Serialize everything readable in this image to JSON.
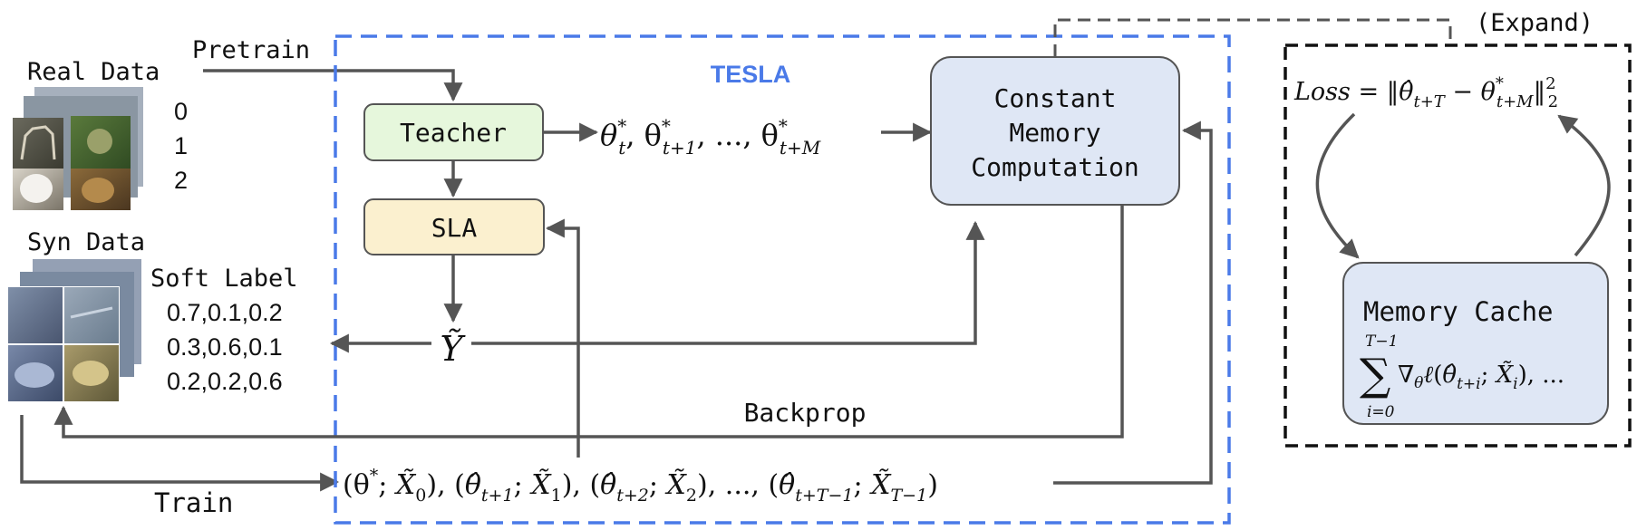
{
  "left": {
    "real_data_label": "Real Data",
    "pretrain_label": "Pretrain",
    "real_classes": [
      "0",
      "1",
      "2"
    ],
    "syn_data_label": "Syn Data",
    "soft_label_title": "Soft Label",
    "soft_labels": [
      "0.7,0.1,0.2",
      "0.3,0.6,0.1",
      "0.2,0.2,0.6"
    ],
    "train_label": "Train"
  },
  "tesla": {
    "title": "TESLA",
    "teacher_label": "Teacher",
    "sla_label": "SLA",
    "teacher_outputs": "θ*_t, θ*_{t+1}, ..., θ*_{t+M}",
    "y_tilde": "Ỹ",
    "backprop_label": "Backprop",
    "trajectory": "(θ*; X̃_0), (θ̂_{t+1}; X̃_1), (θ̂_{t+2}; X̃_2), ..., (θ̂_{t+T−1}; X̃_{T−1})"
  },
  "cmc": {
    "line1": "Constant",
    "line2": "Memory",
    "line3": "Computation"
  },
  "expand": {
    "label": "(Expand)",
    "loss": "Loss = ‖θ̂_{t+T} − θ*_{t+M}‖²_2",
    "memory_cache_title": "Memory Cache",
    "memory_cache_formula": "Σ_{i=0}^{T−1} ∇_θ ℓ(θ̂_{t+i}; X̃_i), ..."
  },
  "colors": {
    "tesla_border": "#4a7ae8",
    "teacher_fill": "#e6f7dc",
    "sla_fill": "#fbf0cf",
    "cmc_fill": "#dfe7f5",
    "arrow": "#555555"
  }
}
